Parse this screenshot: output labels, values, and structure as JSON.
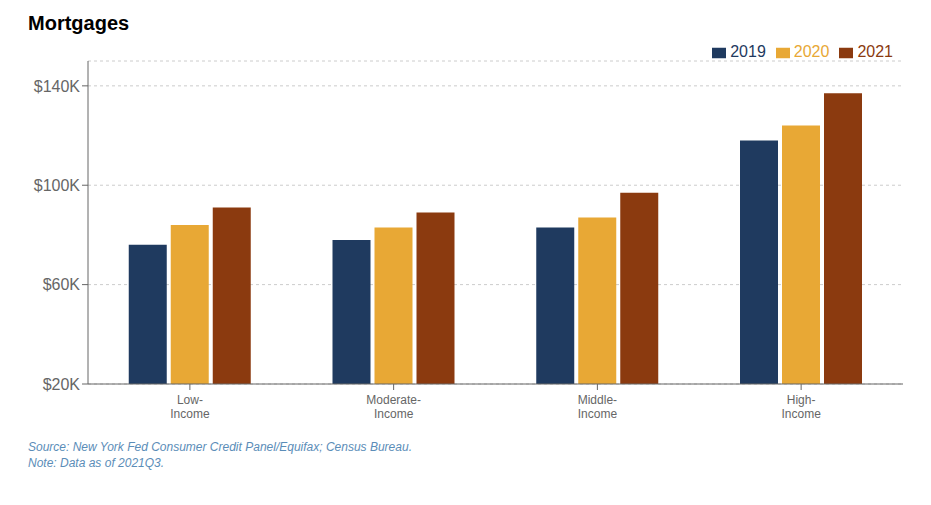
{
  "chart_data": {
    "type": "bar",
    "title": "Mortgages",
    "categories": [
      "Low-\nIncome",
      "Moderate-\nIncome",
      "Middle-\nIncome",
      "High-\nIncome"
    ],
    "series": [
      {
        "name": "2019",
        "color": "#1F3A5F",
        "values": [
          76000,
          78000,
          83000,
          118000
        ]
      },
      {
        "name": "2020",
        "color": "#E8A835",
        "values": [
          84000,
          83000,
          87000,
          124000
        ]
      },
      {
        "name": "2021",
        "color": "#8B3A0F",
        "values": [
          91000,
          89000,
          97000,
          137000
        ]
      }
    ],
    "ylim": [
      20000,
      150000
    ],
    "yticks": [
      {
        "value": 20000,
        "label": "$20K"
      },
      {
        "value": 60000,
        "label": "$60K"
      },
      {
        "value": 100000,
        "label": "$100K"
      },
      {
        "value": 140000,
        "label": "$140K"
      }
    ],
    "grid": true,
    "legend": "upper right",
    "annotations": [
      "Source: New York Fed Consumer Credit Panel/Equifax; Census Bureau.\nNote: Data as of 2021Q3."
    ]
  }
}
